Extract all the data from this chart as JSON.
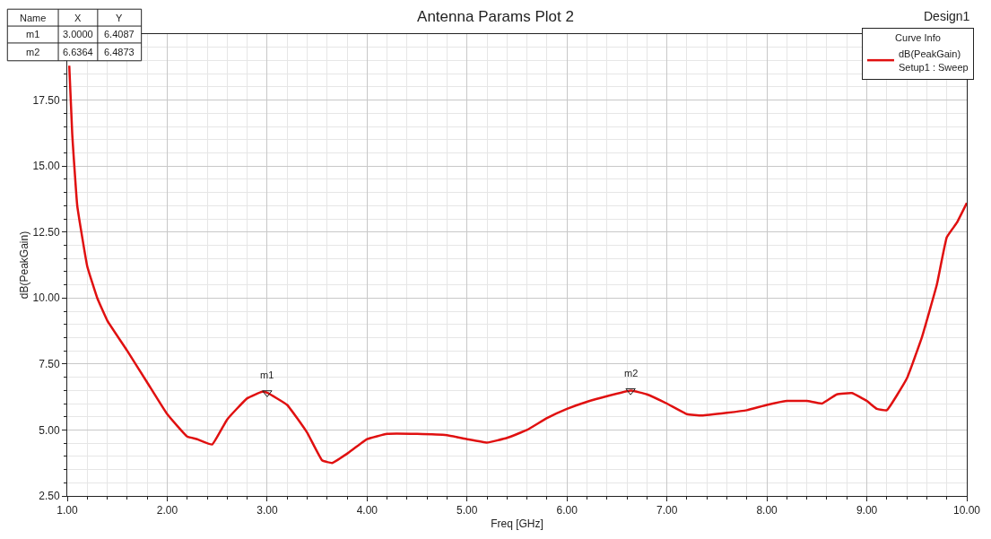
{
  "chart_data": {
    "type": "line",
    "title": "Antenna Params Plot 2",
    "xlabel": "Freq [GHz]",
    "ylabel": "dB(PeakGain)",
    "legend_title": "Curve Info",
    "x": [
      1.02,
      1.05,
      1.1,
      1.2,
      1.3,
      1.4,
      1.6,
      1.8,
      2.0,
      2.2,
      2.3,
      2.45,
      2.6,
      2.8,
      2.95,
      3.0,
      3.2,
      3.4,
      3.55,
      3.65,
      3.8,
      4.0,
      4.2,
      4.5,
      4.8,
      5.0,
      5.2,
      5.4,
      5.6,
      5.8,
      6.0,
      6.2,
      6.4,
      6.64,
      6.8,
      7.0,
      7.2,
      7.35,
      7.6,
      7.8,
      8.0,
      8.2,
      8.4,
      8.55,
      8.7,
      8.85,
      9.0,
      9.1,
      9.2,
      9.4,
      9.55,
      9.7,
      9.8,
      9.9,
      10.0
    ],
    "series": [
      {
        "name": "dB(PeakGain)\nSetup1 : Sweep",
        "color": "#e01010",
        "values": [
          18.8,
          16.2,
          13.5,
          11.2,
          10.0,
          9.15,
          8.0,
          6.8,
          5.6,
          4.75,
          4.65,
          4.45,
          5.4,
          6.2,
          6.45,
          6.41,
          5.95,
          4.9,
          3.85,
          3.75,
          4.1,
          4.65,
          4.85,
          4.85,
          4.8,
          4.65,
          4.52,
          4.7,
          5.0,
          5.45,
          5.8,
          6.07,
          6.28,
          6.49,
          6.35,
          6.0,
          5.6,
          5.55,
          5.65,
          5.75,
          5.95,
          6.1,
          6.1,
          6.0,
          6.35,
          6.4,
          6.1,
          5.8,
          5.75,
          6.95,
          8.5,
          10.5,
          12.3,
          12.85,
          13.6
        ]
      }
    ],
    "xlim": [
      1.0,
      10.0
    ],
    "xticks": [
      {
        "value": 1,
        "label": "1.00"
      },
      {
        "value": 2,
        "label": "2.00"
      },
      {
        "value": 3,
        "label": "3.00"
      },
      {
        "value": 4,
        "label": "4.00"
      },
      {
        "value": 5,
        "label": "5.00"
      },
      {
        "value": 6,
        "label": "6.00"
      },
      {
        "value": 7,
        "label": "7.00"
      },
      {
        "value": 8,
        "label": "8.00"
      },
      {
        "value": 9,
        "label": "9.00"
      },
      {
        "value": 10,
        "label": "10.00"
      }
    ],
    "ylim": [
      2.5,
      20.0
    ],
    "yticks": [
      {
        "value": 2.5,
        "label": "2.50"
      },
      {
        "value": 5,
        "label": "5.00"
      },
      {
        "value": 7.5,
        "label": "7.50"
      },
      {
        "value": 10,
        "label": "10.00"
      },
      {
        "value": 12.5,
        "label": "12.50"
      },
      {
        "value": 15,
        "label": "15.00"
      },
      {
        "value": 17.5,
        "label": "17.50"
      }
    ],
    "grid": true,
    "legend": "top right",
    "marker": "none",
    "line_style": "solid",
    "annotations": [
      "Design1",
      "Name",
      "X",
      "Y",
      "m1",
      "3.0000",
      "6.4087",
      "m2",
      "6.6364",
      "6.4873",
      {
        "text": "m1",
        "x": 3.0,
        "y": 6.4087
      },
      {
        "text": "m2",
        "x": 6.6364,
        "y": 6.4873
      }
    ]
  }
}
